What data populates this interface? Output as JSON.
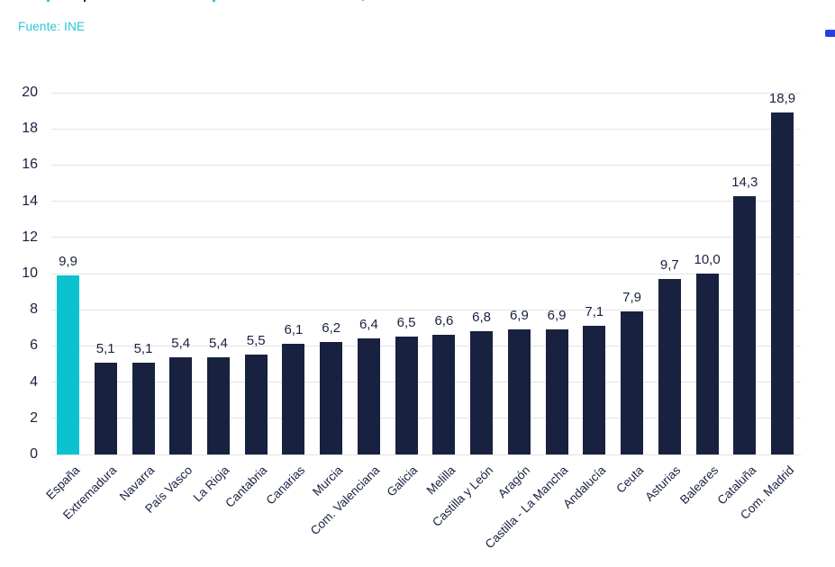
{
  "source": {
    "label": "Fuente: INE"
  },
  "colors": {
    "navy": "#192140",
    "cyan_bar": "#0bc2d1",
    "cyan_text": "#2cc5d5",
    "grid": "#e3e3e6",
    "logo_blue": "#2c3ddd"
  },
  "decor": {
    "top_fragments": [
      {
        "x": 52,
        "w": 3,
        "h": 2,
        "color": "#2cc5d5"
      },
      {
        "x": 93,
        "w": 2,
        "h": 2,
        "color": "#192140"
      },
      {
        "x": 236,
        "w": 3,
        "h": 2,
        "color": "#2cc5d5"
      },
      {
        "x": 402,
        "w": 2,
        "h": 1,
        "color": "#2cc5d5"
      }
    ]
  },
  "chart_data": {
    "type": "bar",
    "title": "",
    "xlabel": "",
    "ylabel": "",
    "source_note": "Fuente: INE",
    "categories": [
      "España",
      "Extremadura",
      "Navarra",
      "País Vasco",
      "La Rioja",
      "Cantabria",
      "Canarias",
      "Murcia",
      "Com. Valenciana",
      "Galicia",
      "Melilla",
      "Castilla y León",
      "Aragón",
      "Castilla - La Mancha",
      "Andalucía",
      "Ceuta",
      "Asturias",
      "Baleares",
      "Cataluña",
      "Com. Madrid"
    ],
    "values": [
      9.9,
      5.1,
      5.1,
      5.4,
      5.4,
      5.5,
      6.1,
      6.2,
      6.4,
      6.5,
      6.6,
      6.8,
      6.9,
      6.9,
      7.1,
      7.9,
      9.7,
      10.0,
      14.3,
      18.9
    ],
    "value_labels": [
      "9,9",
      "5,1",
      "5,1",
      "5,4",
      "5,4",
      "5,5",
      "6,1",
      "6,2",
      "6,4",
      "6,5",
      "6,6",
      "6,8",
      "6,9",
      "6,9",
      "7,1",
      "7,9",
      "9,7",
      "10,0",
      "14,3",
      "18,9"
    ],
    "highlight_index": 0,
    "bar_color": "#192140",
    "highlight_color": "#0bc2d1",
    "gridline_color": "#e3e3e6",
    "ylim": [
      0,
      20
    ],
    "ytick_step": 2,
    "yticks": [
      0,
      2,
      4,
      6,
      8,
      10,
      12,
      14,
      16,
      18,
      20
    ],
    "grid": true,
    "legend": "none",
    "xtick_rotation_deg": -45
  }
}
